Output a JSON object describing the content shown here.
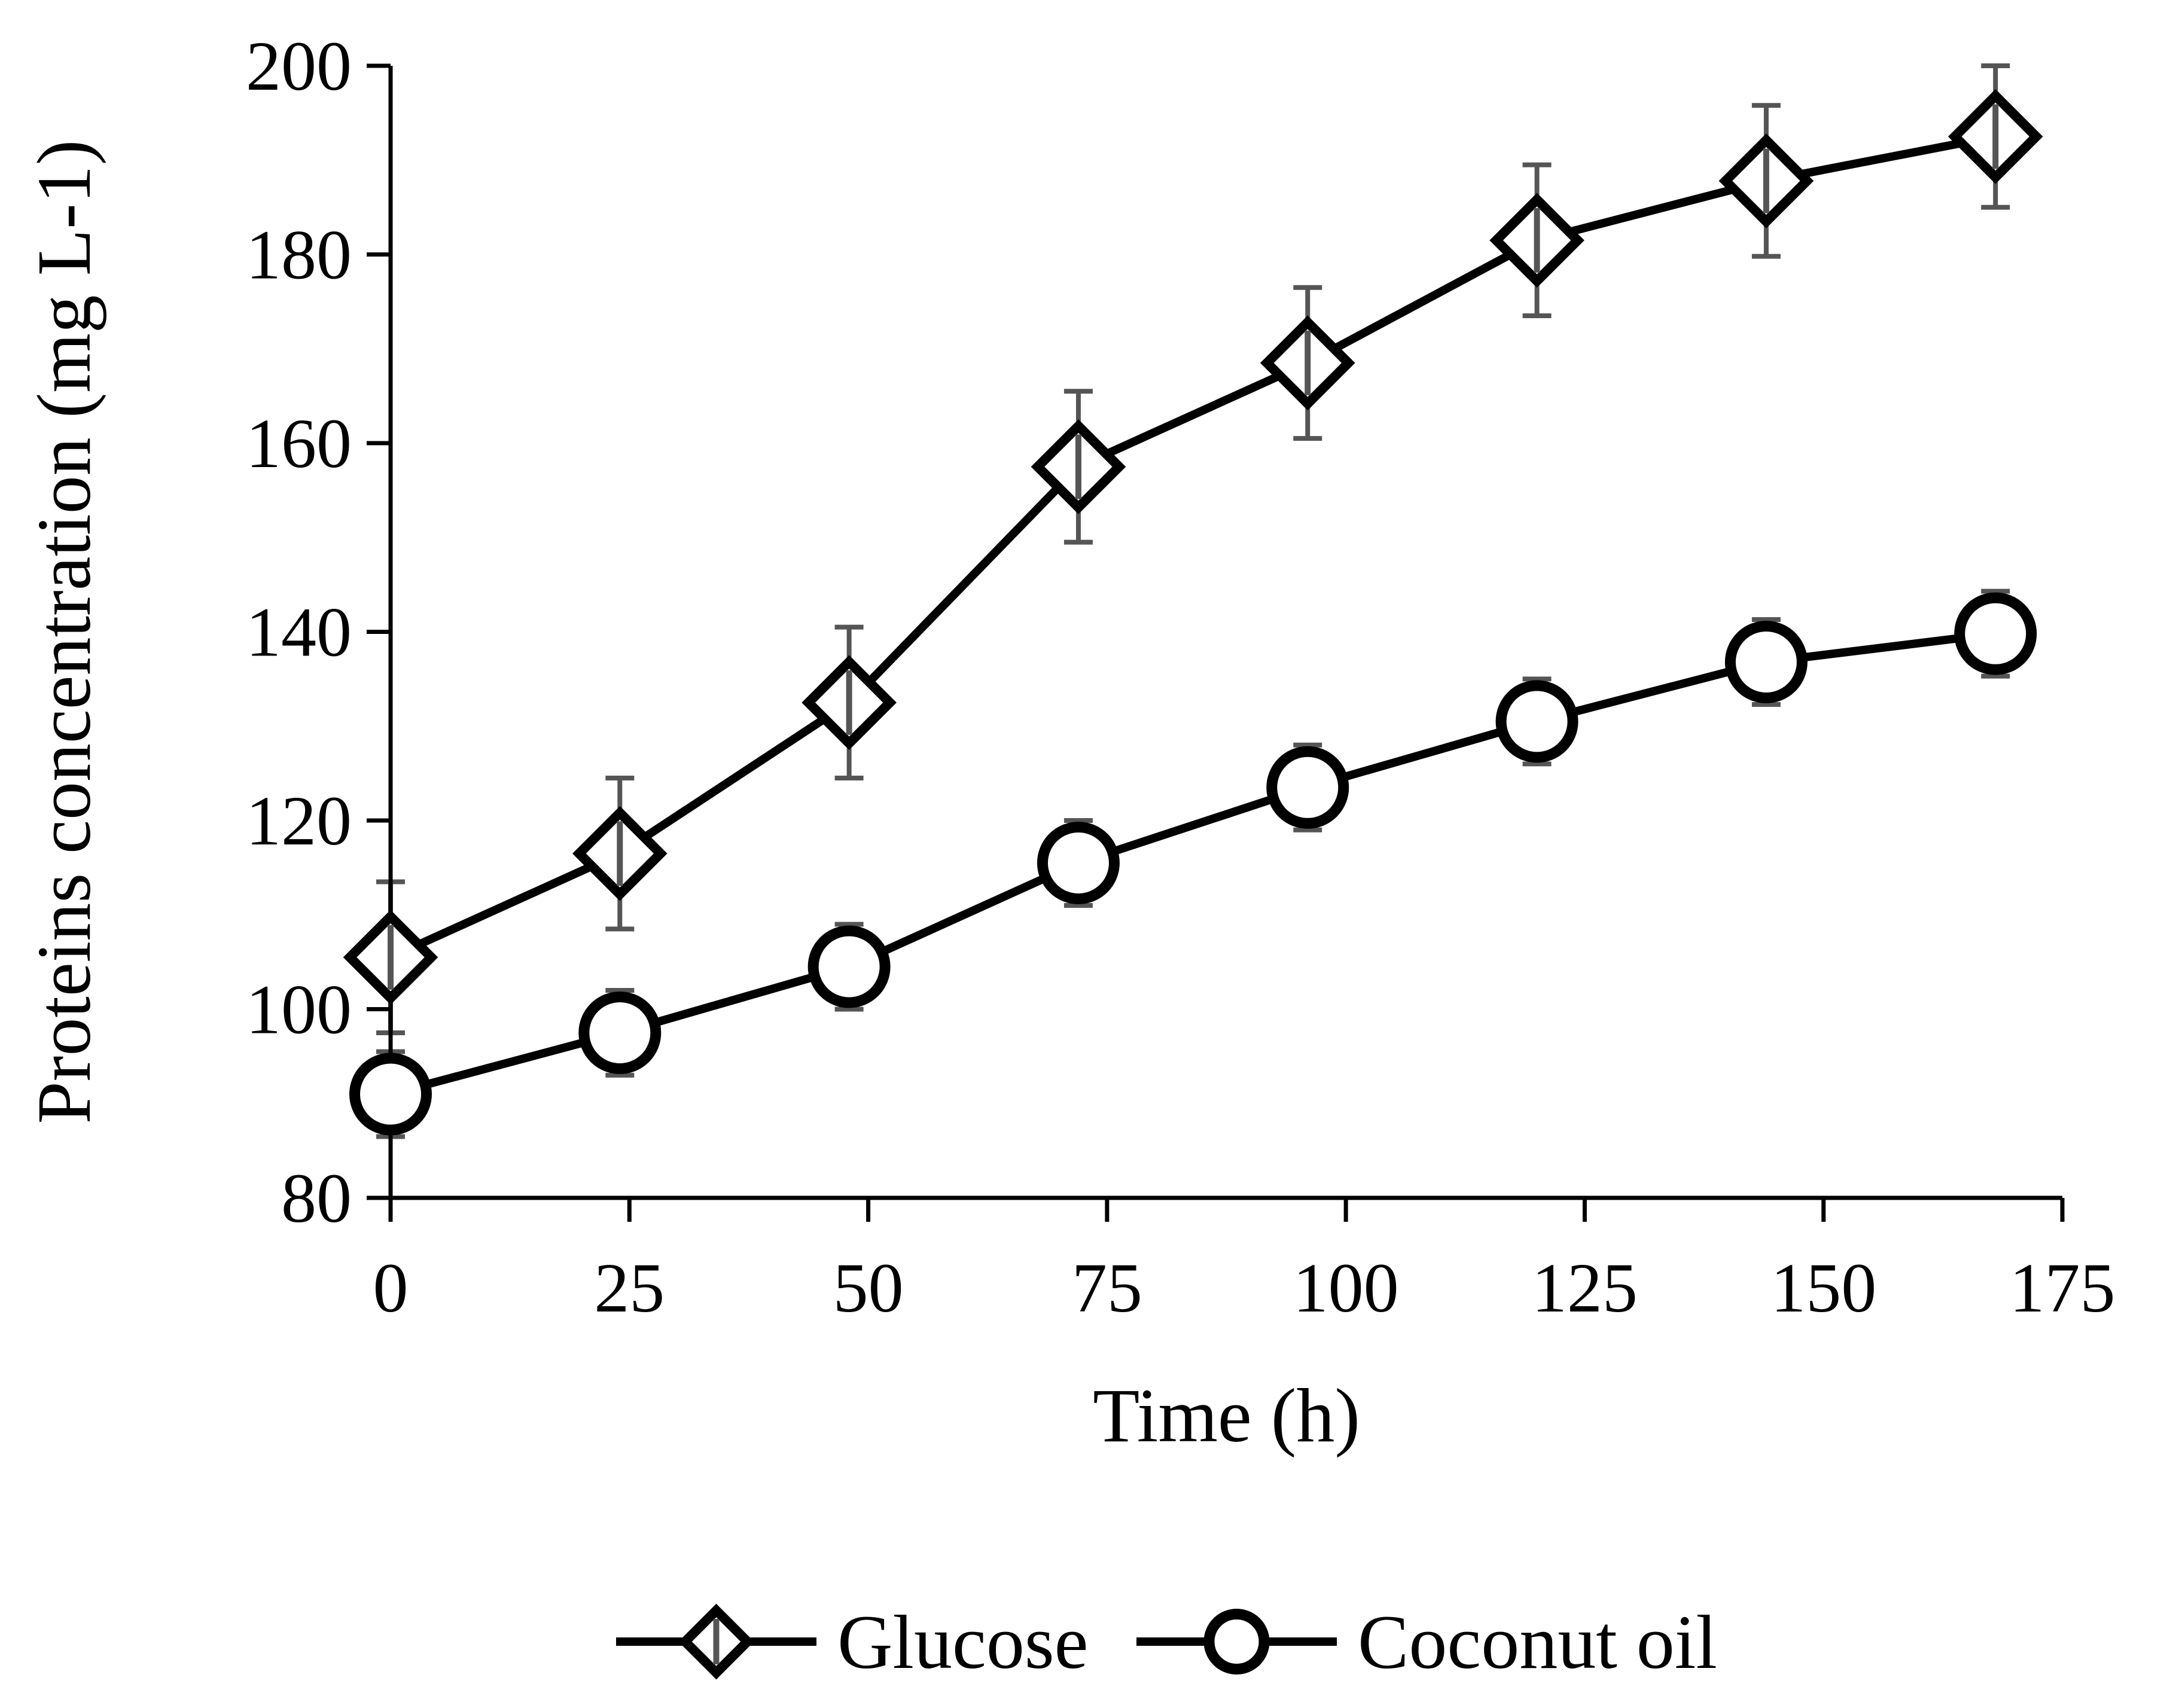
{
  "chart_data": {
    "type": "line",
    "title": "",
    "xlabel": "Time (h)",
    "ylabel": "Proteins concentration (mg L-1)",
    "xlim": [
      0,
      175
    ],
    "ylim": [
      80,
      200
    ],
    "xticks": [
      0,
      25,
      50,
      75,
      100,
      125,
      150,
      175
    ],
    "yticks": [
      80,
      100,
      120,
      140,
      160,
      180,
      200
    ],
    "x_tick_labels": [
      "0",
      "25",
      "50",
      "75",
      "100",
      "125",
      "150",
      "175"
    ],
    "y_tick_labels": [
      "80",
      "100",
      "120",
      "140",
      "160",
      "180",
      "200"
    ],
    "grid": false,
    "legend_position": "bottom-center",
    "x": [
      0,
      24,
      48,
      72,
      96,
      120,
      144,
      168
    ],
    "series": [
      {
        "name": "Glucose",
        "marker": "diamond",
        "color": "#000000",
        "values": [
          105.5,
          116.5,
          132.5,
          157.5,
          168.5,
          181.5,
          187.8,
          192.5
        ],
        "error": [
          8,
          8,
          8,
          8,
          8,
          8,
          8,
          7.5
        ]
      },
      {
        "name": "Coconut oil",
        "marker": "circle",
        "color": "#000000",
        "values": [
          91,
          97.5,
          104.5,
          115.5,
          123.5,
          130.5,
          136.8,
          139.8
        ],
        "error": [
          4.5,
          4.5,
          4.5,
          4.5,
          4.5,
          4.5,
          4.5,
          4.5
        ]
      }
    ],
    "error_bar_color": "#555555"
  }
}
